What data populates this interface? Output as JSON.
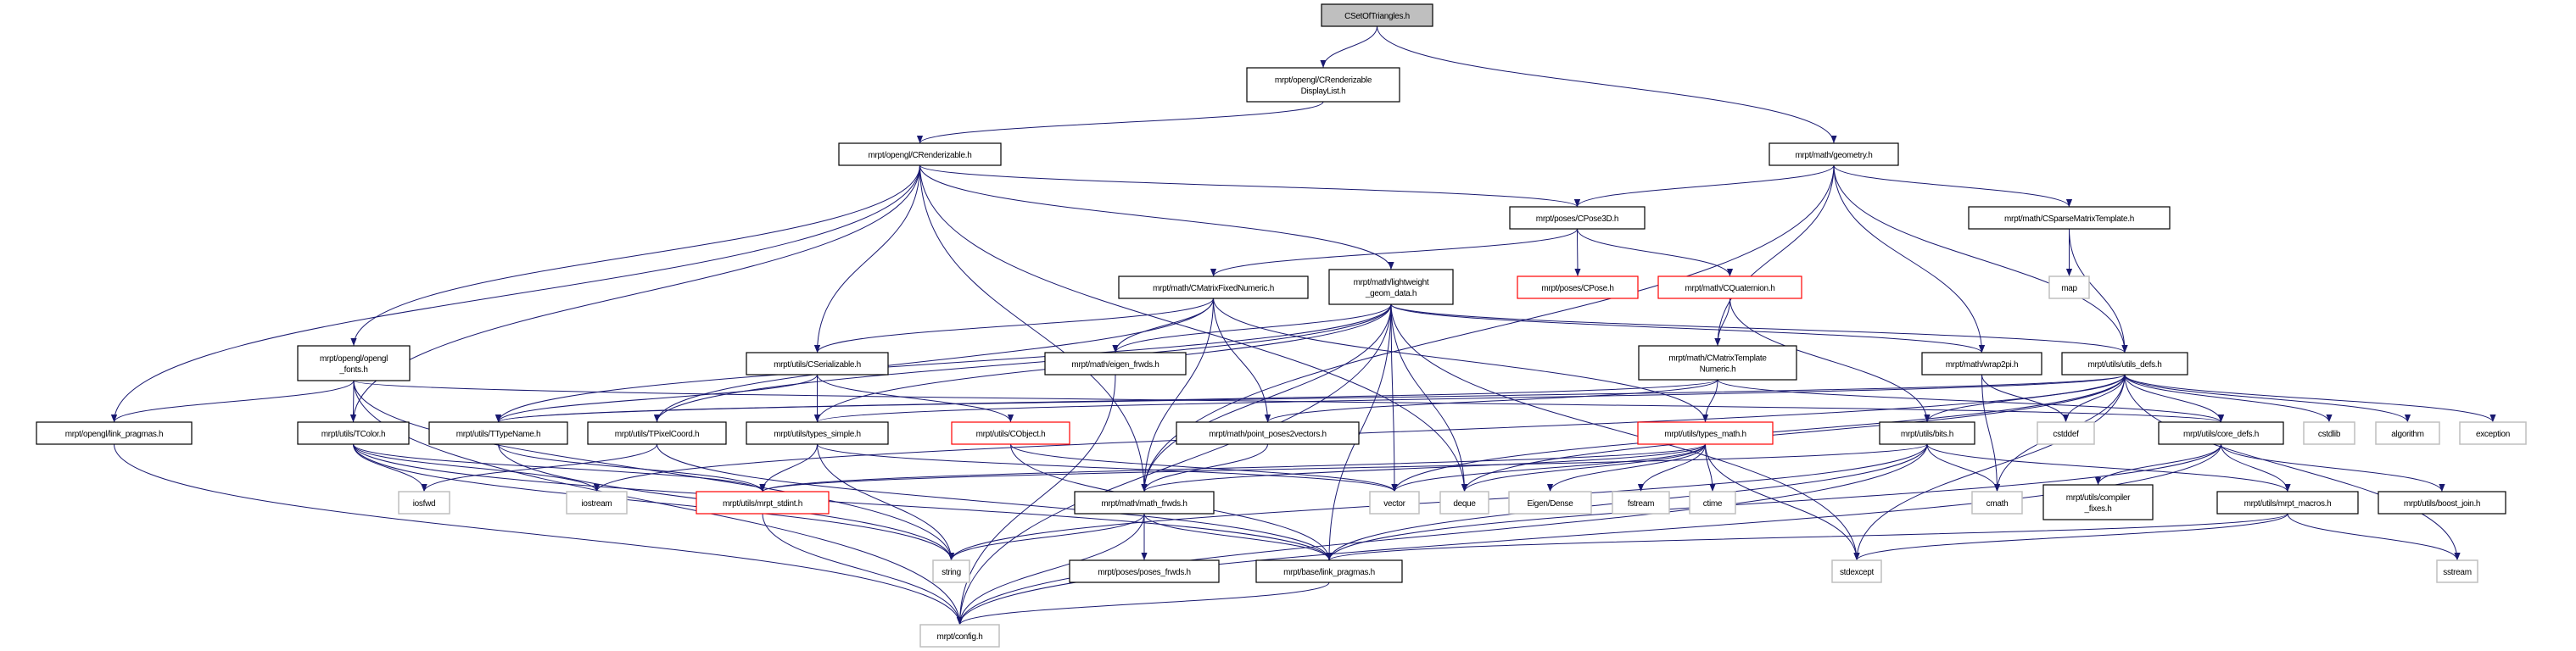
{
  "diagram": {
    "type": "include-dependency-graph",
    "colors": {
      "edge": "#191970",
      "root_fill": "#bfbfbf",
      "node_border": "#000000",
      "truncated_border": "#ff0000",
      "external_border": "#bfbfbf"
    },
    "nodes": [
      {
        "id": "root",
        "lines": [
          "CSetOfTriangles.h"
        ],
        "style": "root"
      },
      {
        "id": "displaylist",
        "lines": [
          "mrpt/opengl/CRenderizable",
          "DisplayList.h"
        ],
        "style": "normal"
      },
      {
        "id": "renderizable",
        "lines": [
          "mrpt/opengl/CRenderizable.h"
        ],
        "style": "normal"
      },
      {
        "id": "geometry",
        "lines": [
          "mrpt/math/geometry.h"
        ],
        "style": "normal"
      },
      {
        "id": "cpose3d",
        "lines": [
          "mrpt/poses/CPose3D.h"
        ],
        "style": "normal"
      },
      {
        "id": "sparse",
        "lines": [
          "mrpt/math/CSparseMatrixTemplate.h"
        ],
        "style": "normal"
      },
      {
        "id": "fonts",
        "lines": [
          "mrpt/opengl/opengl",
          "_fonts.h"
        ],
        "style": "normal"
      },
      {
        "id": "serializable",
        "lines": [
          "mrpt/utils/CSerializable.h"
        ],
        "style": "normal"
      },
      {
        "id": "fixednum",
        "lines": [
          "mrpt/math/CMatrixFixedNumeric.h"
        ],
        "style": "normal"
      },
      {
        "id": "lightweight",
        "lines": [
          "mrpt/math/lightweight",
          "_geom_data.h"
        ],
        "style": "normal"
      },
      {
        "id": "cpose",
        "lines": [
          "mrpt/poses/CPose.h"
        ],
        "style": "truncated"
      },
      {
        "id": "quaternion",
        "lines": [
          "mrpt/math/CQuaternion.h"
        ],
        "style": "truncated"
      },
      {
        "id": "templnum",
        "lines": [
          "mrpt/math/CMatrixTemplate",
          "Numeric.h"
        ],
        "style": "normal"
      },
      {
        "id": "wrap2pi",
        "lines": [
          "mrpt/math/wrap2pi.h"
        ],
        "style": "normal"
      },
      {
        "id": "utilsdefs",
        "lines": [
          "mrpt/utils/utils_defs.h"
        ],
        "style": "normal"
      },
      {
        "id": "map",
        "lines": [
          "map"
        ],
        "style": "external"
      },
      {
        "id": "eigenfrwds",
        "lines": [
          "mrpt/math/eigen_frwds.h"
        ],
        "style": "normal"
      },
      {
        "id": "gllink",
        "lines": [
          "mrpt/opengl/link_pragmas.h"
        ],
        "style": "normal"
      },
      {
        "id": "tcolor",
        "lines": [
          "mrpt/utils/TColor.h"
        ],
        "style": "normal"
      },
      {
        "id": "ttypename",
        "lines": [
          "mrpt/utils/TTypeName.h"
        ],
        "style": "normal"
      },
      {
        "id": "tpixel",
        "lines": [
          "mrpt/utils/TPixelCoord.h"
        ],
        "style": "normal"
      },
      {
        "id": "typessimple",
        "lines": [
          "mrpt/utils/types_simple.h"
        ],
        "style": "normal"
      },
      {
        "id": "cobject",
        "lines": [
          "mrpt/utils/CObject.h"
        ],
        "style": "truncated"
      },
      {
        "id": "pp2v",
        "lines": [
          "mrpt/math/point_poses2vectors.h"
        ],
        "style": "normal"
      },
      {
        "id": "typesmath",
        "lines": [
          "mrpt/utils/types_math.h"
        ],
        "style": "truncated"
      },
      {
        "id": "bits",
        "lines": [
          "mrpt/utils/bits.h"
        ],
        "style": "normal"
      },
      {
        "id": "cstddef",
        "lines": [
          "cstddef"
        ],
        "style": "external"
      },
      {
        "id": "coredefs",
        "lines": [
          "mrpt/utils/core_defs.h"
        ],
        "style": "normal"
      },
      {
        "id": "cstdlib",
        "lines": [
          "cstdlib"
        ],
        "style": "external"
      },
      {
        "id": "algorithm",
        "lines": [
          "algorithm"
        ],
        "style": "external"
      },
      {
        "id": "exception",
        "lines": [
          "exception"
        ],
        "style": "external"
      },
      {
        "id": "iosfwd",
        "lines": [
          "iosfwd"
        ],
        "style": "external"
      },
      {
        "id": "iostream",
        "lines": [
          "iostream"
        ],
        "style": "external"
      },
      {
        "id": "stdint",
        "lines": [
          "mrpt/utils/mrpt_stdint.h"
        ],
        "style": "truncated"
      },
      {
        "id": "vector",
        "lines": [
          "vector"
        ],
        "style": "external"
      },
      {
        "id": "deque",
        "lines": [
          "deque"
        ],
        "style": "external"
      },
      {
        "id": "eigendense",
        "lines": [
          "Eigen/Dense"
        ],
        "style": "external"
      },
      {
        "id": "fstream",
        "lines": [
          "fstream"
        ],
        "style": "external"
      },
      {
        "id": "ctime",
        "lines": [
          "ctime"
        ],
        "style": "external"
      },
      {
        "id": "mathfrwds",
        "lines": [
          "mrpt/math/math_frwds.h"
        ],
        "style": "normal"
      },
      {
        "id": "cmath",
        "lines": [
          "cmath"
        ],
        "style": "external"
      },
      {
        "id": "compfixes",
        "lines": [
          "mrpt/utils/compiler",
          "_fixes.h"
        ],
        "style": "normal"
      },
      {
        "id": "macros",
        "lines": [
          "mrpt/utils/mrpt_macros.h"
        ],
        "style": "normal"
      },
      {
        "id": "boostjoin",
        "lines": [
          "mrpt/utils/boost_join.h"
        ],
        "style": "normal"
      },
      {
        "id": "string",
        "lines": [
          "string"
        ],
        "style": "external"
      },
      {
        "id": "posesfrwds",
        "lines": [
          "mrpt/poses/poses_frwds.h"
        ],
        "style": "normal"
      },
      {
        "id": "baselink",
        "lines": [
          "mrpt/base/link_pragmas.h"
        ],
        "style": "normal"
      },
      {
        "id": "stdexcept",
        "lines": [
          "stdexcept"
        ],
        "style": "external"
      },
      {
        "id": "sstream",
        "lines": [
          "sstream"
        ],
        "style": "external"
      },
      {
        "id": "config",
        "lines": [
          "mrpt/config.h"
        ],
        "style": "external"
      }
    ],
    "edges": [
      [
        "root",
        "displaylist"
      ],
      [
        "root",
        "geometry"
      ],
      [
        "displaylist",
        "renderizable"
      ],
      [
        "renderizable",
        "gllink"
      ],
      [
        "renderizable",
        "fonts"
      ],
      [
        "renderizable",
        "tcolor"
      ],
      [
        "renderizable",
        "serializable"
      ],
      [
        "renderizable",
        "mathfrwds"
      ],
      [
        "renderizable",
        "lightweight"
      ],
      [
        "renderizable",
        "cpose3d"
      ],
      [
        "renderizable",
        "deque"
      ],
      [
        "geometry",
        "cpose3d"
      ],
      [
        "geometry",
        "sparse"
      ],
      [
        "geometry",
        "utilsdefs"
      ],
      [
        "geometry",
        "wrap2pi"
      ],
      [
        "geometry",
        "templnum"
      ],
      [
        "geometry",
        "mathfrwds"
      ],
      [
        "cpose3d",
        "fixednum"
      ],
      [
        "cpose3d",
        "cpose"
      ],
      [
        "cpose3d",
        "quaternion"
      ],
      [
        "sparse",
        "map"
      ],
      [
        "sparse",
        "utilsdefs"
      ],
      [
        "fonts",
        "gllink"
      ],
      [
        "fonts",
        "tcolor"
      ],
      [
        "fonts",
        "string"
      ],
      [
        "fonts",
        "config"
      ],
      [
        "fonts",
        "coredefs"
      ],
      [
        "serializable",
        "ttypename"
      ],
      [
        "serializable",
        "typessimple"
      ],
      [
        "serializable",
        "cobject"
      ],
      [
        "fixednum",
        "serializable"
      ],
      [
        "fixednum",
        "eigenfrwds"
      ],
      [
        "fixednum",
        "mathfrwds"
      ],
      [
        "fixednum",
        "pp2v"
      ],
      [
        "fixednum",
        "typesmath"
      ],
      [
        "fixednum",
        "tpixel"
      ],
      [
        "lightweight",
        "eigenfrwds"
      ],
      [
        "lightweight",
        "typessimple"
      ],
      [
        "lightweight",
        "tpixel"
      ],
      [
        "lightweight",
        "mathfrwds"
      ],
      [
        "lightweight",
        "vector"
      ],
      [
        "lightweight",
        "deque"
      ],
      [
        "lightweight",
        "baselink"
      ],
      [
        "lightweight",
        "utilsdefs"
      ],
      [
        "lightweight",
        "wrap2pi"
      ],
      [
        "lightweight",
        "stdexcept"
      ],
      [
        "lightweight",
        "config"
      ],
      [
        "lightweight",
        "ttypename"
      ],
      [
        "quaternion",
        "templnum"
      ],
      [
        "quaternion",
        "bits"
      ],
      [
        "templnum",
        "typesmath"
      ],
      [
        "templnum",
        "pp2v"
      ],
      [
        "templnum",
        "coredefs"
      ],
      [
        "templnum",
        "ttypename"
      ],
      [
        "wrap2pi",
        "cmath"
      ],
      [
        "wrap2pi",
        "cstddef"
      ],
      [
        "utilsdefs",
        "bits"
      ],
      [
        "utilsdefs",
        "cstddef"
      ],
      [
        "utilsdefs",
        "coredefs"
      ],
      [
        "utilsdefs",
        "cstdlib"
      ],
      [
        "utilsdefs",
        "algorithm"
      ],
      [
        "utilsdefs",
        "exception"
      ],
      [
        "utilsdefs",
        "cmath"
      ],
      [
        "utilsdefs",
        "stdexcept"
      ],
      [
        "utilsdefs",
        "sstream"
      ],
      [
        "utilsdefs",
        "vector"
      ],
      [
        "utilsdefs",
        "deque"
      ],
      [
        "utilsdefs",
        "iostream"
      ],
      [
        "utilsdefs",
        "ttypename"
      ],
      [
        "utilsdefs",
        "typessimple"
      ],
      [
        "eigenfrwds",
        "config"
      ],
      [
        "tcolor",
        "iosfwd"
      ],
      [
        "tcolor",
        "iostream"
      ],
      [
        "tcolor",
        "stdint"
      ],
      [
        "tcolor",
        "string"
      ],
      [
        "tcolor",
        "baselink"
      ],
      [
        "ttypename",
        "stdint"
      ],
      [
        "ttypename",
        "string"
      ],
      [
        "tpixel",
        "iosfwd"
      ],
      [
        "tpixel",
        "baselink"
      ],
      [
        "typessimple",
        "stdint"
      ],
      [
        "typessimple",
        "string"
      ],
      [
        "typessimple",
        "vector"
      ],
      [
        "cobject",
        "vector"
      ],
      [
        "cobject",
        "baselink"
      ],
      [
        "pp2v",
        "mathfrwds"
      ],
      [
        "typesmath",
        "vector"
      ],
      [
        "typesmath",
        "deque"
      ],
      [
        "typesmath",
        "eigendense"
      ],
      [
        "typesmath",
        "fstream"
      ],
      [
        "typesmath",
        "ctime"
      ],
      [
        "typesmath",
        "mathfrwds"
      ],
      [
        "typesmath",
        "stdexcept"
      ],
      [
        "typesmath",
        "stdint"
      ],
      [
        "bits",
        "cmath"
      ],
      [
        "bits",
        "macros"
      ],
      [
        "bits",
        "string"
      ],
      [
        "bits",
        "baselink"
      ],
      [
        "bits",
        "config"
      ],
      [
        "bits",
        "stdint"
      ],
      [
        "coredefs",
        "compfixes"
      ],
      [
        "coredefs",
        "macros"
      ],
      [
        "coredefs",
        "boostjoin"
      ],
      [
        "coredefs",
        "baselink"
      ],
      [
        "coredefs",
        "config"
      ],
      [
        "macros",
        "stdexcept"
      ],
      [
        "macros",
        "sstream"
      ],
      [
        "macros",
        "baselink"
      ],
      [
        "stdint",
        "config"
      ],
      [
        "mathfrwds",
        "string"
      ],
      [
        "mathfrwds",
        "posesfrwds"
      ],
      [
        "mathfrwds",
        "baselink"
      ],
      [
        "mathfrwds",
        "config"
      ],
      [
        "baselink",
        "config"
      ],
      [
        "gllink",
        "config"
      ]
    ]
  }
}
